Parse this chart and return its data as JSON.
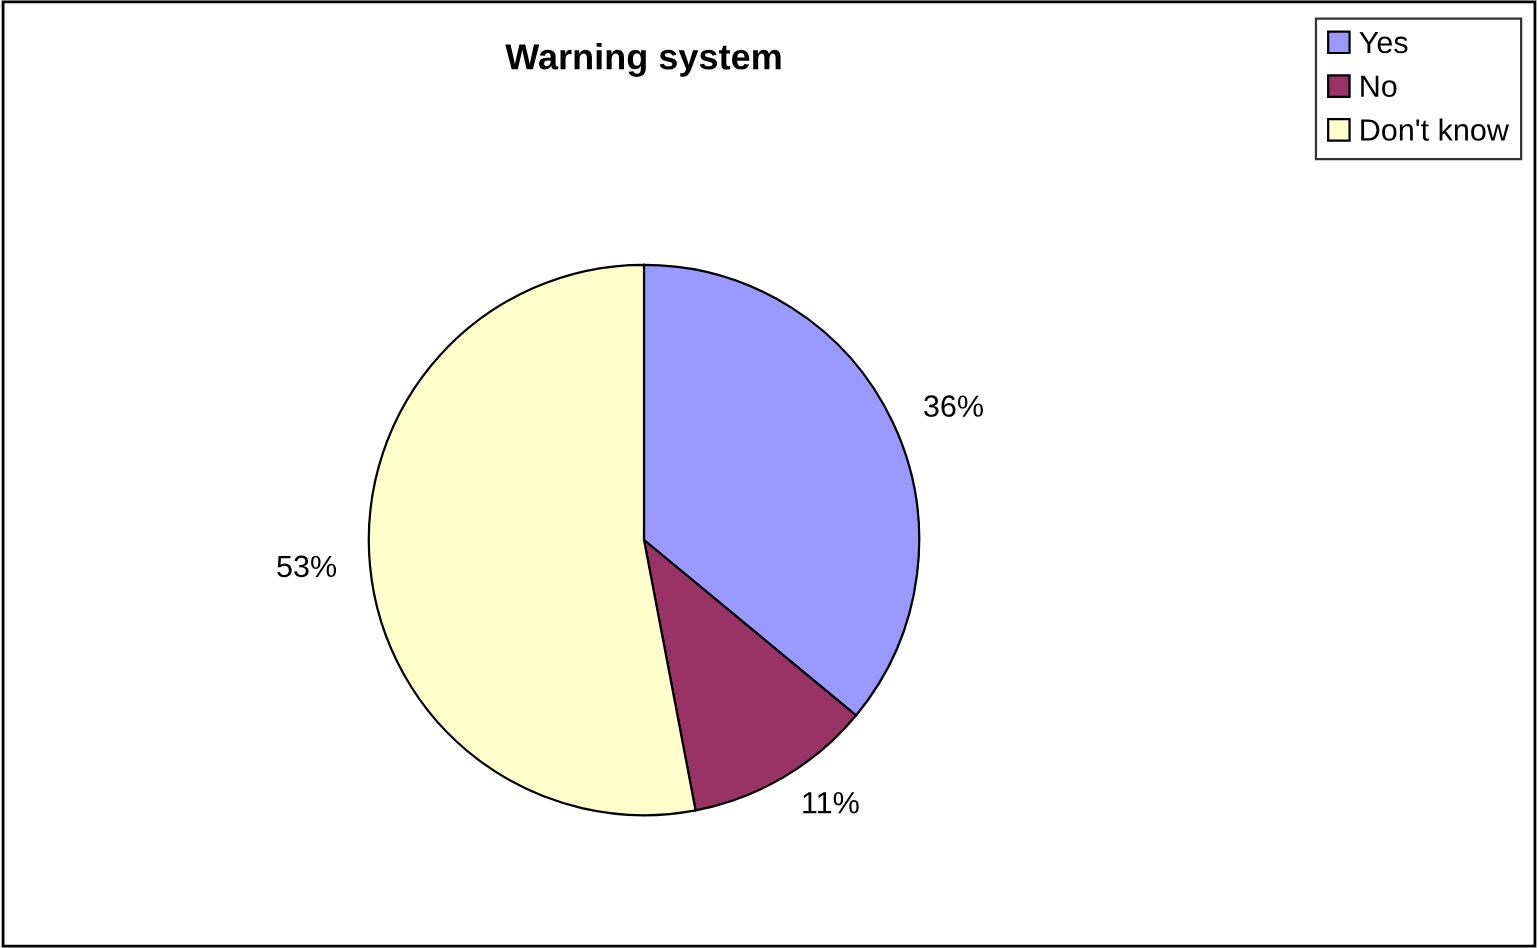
{
  "chart_data": {
    "type": "pie",
    "title": "Warning system",
    "categories": [
      "Yes",
      "No",
      "Don't know"
    ],
    "values": [
      36,
      11,
      53
    ],
    "colors": [
      "#9999ff",
      "#993366",
      "#ffffcc"
    ],
    "value_labels": [
      "36%",
      "11%",
      "53%"
    ],
    "legend": "top right"
  }
}
